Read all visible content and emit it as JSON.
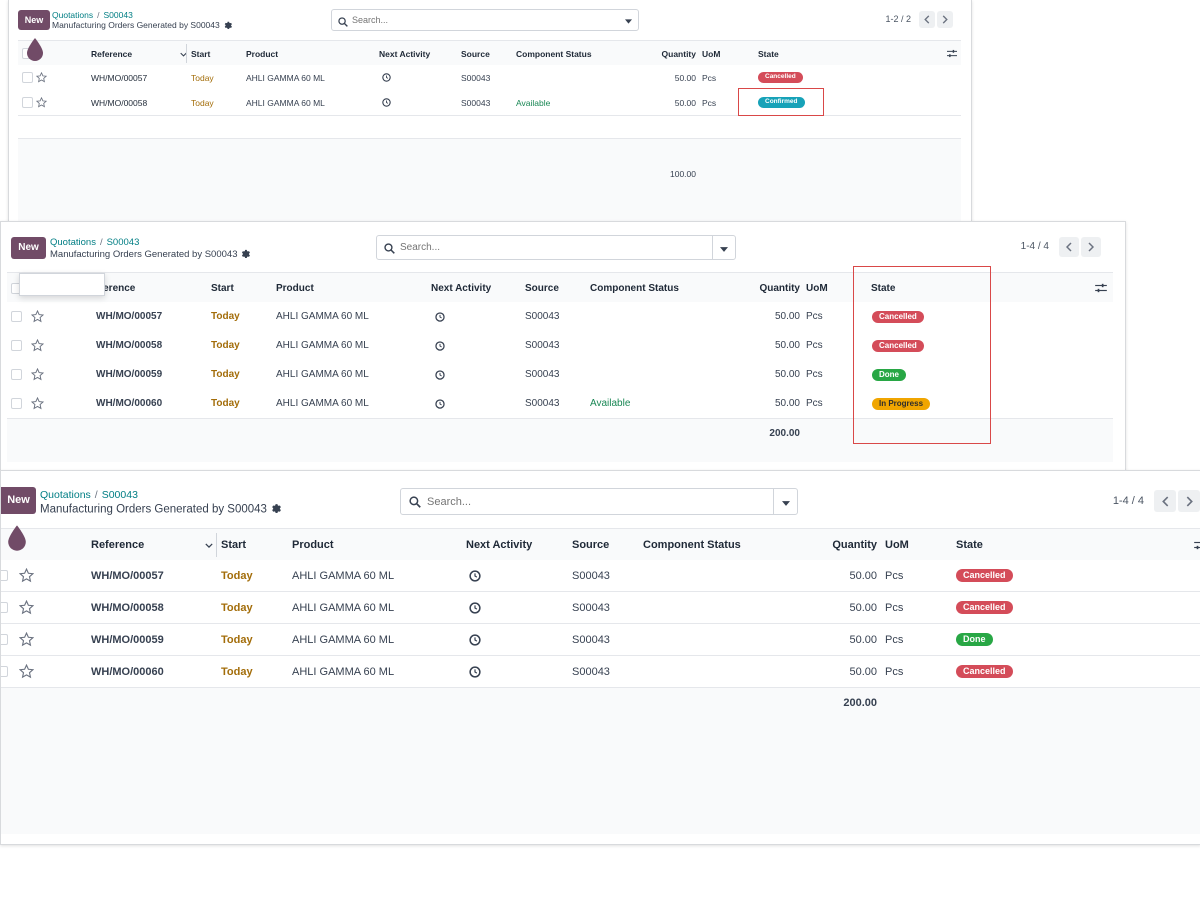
{
  "panels": [
    {
      "new_label": "New",
      "breadcrumb": {
        "parent": "Quotations",
        "separator": "/",
        "current": "S00043",
        "title": "Manufacturing Orders Generated by S00043"
      },
      "search": {
        "placeholder": "Search..."
      },
      "pager": {
        "text": "1-2 / 2"
      },
      "columns": {
        "reference": "Reference",
        "start": "Start",
        "product": "Product",
        "next_activity": "Next Activity",
        "source": "Source",
        "component_status": "Component Status",
        "quantity": "Quantity",
        "uom": "UoM",
        "state": "State"
      },
      "rows": [
        {
          "reference": "WH/MO/00057",
          "start": "Today",
          "product": "AHLI GAMMA 60 ML",
          "source": "S00043",
          "component_status": "",
          "quantity": "50.00",
          "uom": "Pcs",
          "state": "Cancelled",
          "state_color": "#d44c59"
        },
        {
          "reference": "WH/MO/00058",
          "start": "Today",
          "product": "AHLI GAMMA 60 ML",
          "source": "S00043",
          "component_status": "Available",
          "quantity": "50.00",
          "uom": "Pcs",
          "state": "Confirmed",
          "state_color": "#17a2b8"
        }
      ],
      "total_quantity": "100.00"
    },
    {
      "new_label": "New",
      "breadcrumb": {
        "parent": "Quotations",
        "separator": "/",
        "current": "S00043",
        "title": "Manufacturing Orders Generated by S00043"
      },
      "search": {
        "placeholder": "Search..."
      },
      "pager": {
        "text": "1-4 / 4"
      },
      "columns": {
        "reference": "Reference",
        "start": "Start",
        "product": "Product",
        "next_activity": "Next Activity",
        "source": "Source",
        "component_status": "Component Status",
        "quantity": "Quantity",
        "uom": "UoM",
        "state": "State"
      },
      "rows": [
        {
          "reference": "WH/MO/00057",
          "start": "Today",
          "product": "AHLI GAMMA 60 ML",
          "source": "S00043",
          "component_status": "",
          "quantity": "50.00",
          "uom": "Pcs",
          "state": "Cancelled",
          "state_color": "#d44c59"
        },
        {
          "reference": "WH/MO/00058",
          "start": "Today",
          "product": "AHLI GAMMA 60 ML",
          "source": "S00043",
          "component_status": "",
          "quantity": "50.00",
          "uom": "Pcs",
          "state": "Cancelled",
          "state_color": "#d44c59"
        },
        {
          "reference": "WH/MO/00059",
          "start": "Today",
          "product": "AHLI GAMMA 60 ML",
          "source": "S00043",
          "component_status": "",
          "quantity": "50.00",
          "uom": "Pcs",
          "state": "Done",
          "state_color": "#28a745"
        },
        {
          "reference": "WH/MO/00060",
          "start": "Today",
          "product": "AHLI GAMMA 60 ML",
          "source": "S00043",
          "component_status": "Available",
          "quantity": "50.00",
          "uom": "Pcs",
          "state": "In Progress",
          "state_color": "#f0a500"
        }
      ],
      "total_quantity": "200.00"
    },
    {
      "new_label": "New",
      "breadcrumb": {
        "parent": "Quotations",
        "separator": "/",
        "current": "S00043",
        "title": "Manufacturing Orders Generated by S00043"
      },
      "search": {
        "placeholder": "Search..."
      },
      "pager": {
        "text": "1-4 / 4"
      },
      "columns": {
        "reference": "Reference",
        "start": "Start",
        "product": "Product",
        "next_activity": "Next Activity",
        "source": "Source",
        "component_status": "Component Status",
        "quantity": "Quantity",
        "uom": "UoM",
        "state": "State"
      },
      "rows": [
        {
          "reference": "WH/MO/00057",
          "start": "Today",
          "product": "AHLI GAMMA 60 ML",
          "source": "S00043",
          "component_status": "",
          "quantity": "50.00",
          "uom": "Pcs",
          "state": "Cancelled",
          "state_color": "#d44c59"
        },
        {
          "reference": "WH/MO/00058",
          "start": "Today",
          "product": "AHLI GAMMA 60 ML",
          "source": "S00043",
          "component_status": "",
          "quantity": "50.00",
          "uom": "Pcs",
          "state": "Cancelled",
          "state_color": "#d44c59"
        },
        {
          "reference": "WH/MO/00059",
          "start": "Today",
          "product": "AHLI GAMMA 60 ML",
          "source": "S00043",
          "component_status": "",
          "quantity": "50.00",
          "uom": "Pcs",
          "state": "Done",
          "state_color": "#28a745"
        },
        {
          "reference": "WH/MO/00060",
          "start": "Today",
          "product": "AHLI GAMMA 60 ML",
          "source": "S00043",
          "component_status": "",
          "quantity": "50.00",
          "uom": "Pcs",
          "state": "Cancelled",
          "state_color": "#d44c59"
        }
      ],
      "total_quantity": "200.00"
    }
  ],
  "colors": {
    "brand": "#714b67",
    "link": "#017e84",
    "highlight_box": "#d94848"
  },
  "icons": {
    "settings": "gear-icon",
    "search": "search-icon",
    "dropdown": "caret-down-icon",
    "favorite": "star-icon",
    "activity": "clock-icon",
    "column_toggle": "sliders-icon",
    "pager_prev": "chevron-left-icon",
    "pager_next": "chevron-right-icon",
    "cursor_drop": "drop-cursor-icon"
  }
}
